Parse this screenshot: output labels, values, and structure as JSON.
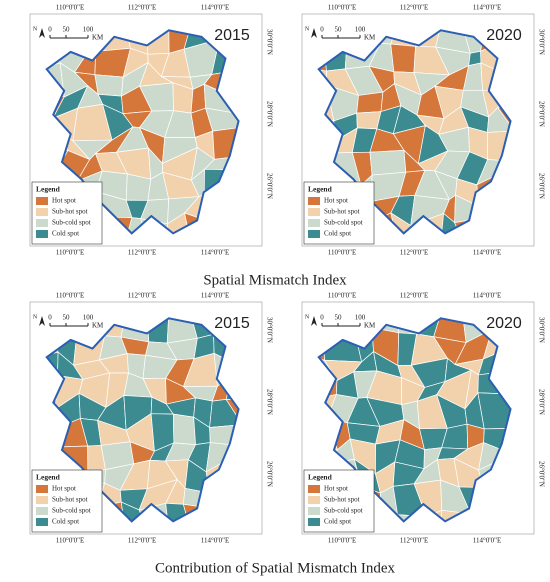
{
  "figure": {
    "sections": [
      {
        "caption": "Spatial Mismatch Index",
        "panels": [
          {
            "year": "2015"
          },
          {
            "year": "2020"
          }
        ]
      },
      {
        "caption": "Contribution of Spatial Mismatch Index",
        "panels": [
          {
            "year": "2015"
          },
          {
            "year": "2020"
          }
        ]
      }
    ],
    "longitudes": [
      "110°0'0\"E",
      "112°0'0\"E",
      "114°0'0\"E"
    ],
    "latitudes": [
      "30°0'0\"N",
      "28°0'0\"N",
      "26°0'0\"N"
    ],
    "north": "N",
    "scale": {
      "ticks": [
        0,
        50,
        100
      ],
      "unit": "KM"
    },
    "legend": {
      "title": "Legend",
      "items": [
        {
          "label": "Hot spot",
          "color": "#d5773a"
        },
        {
          "label": "Sub-hot spot",
          "color": "#f2d1ad"
        },
        {
          "label": "Sub-cold spot",
          "color": "#cbdacd"
        },
        {
          "label": "Cold spot",
          "color": "#3b8b90"
        }
      ]
    }
  }
}
